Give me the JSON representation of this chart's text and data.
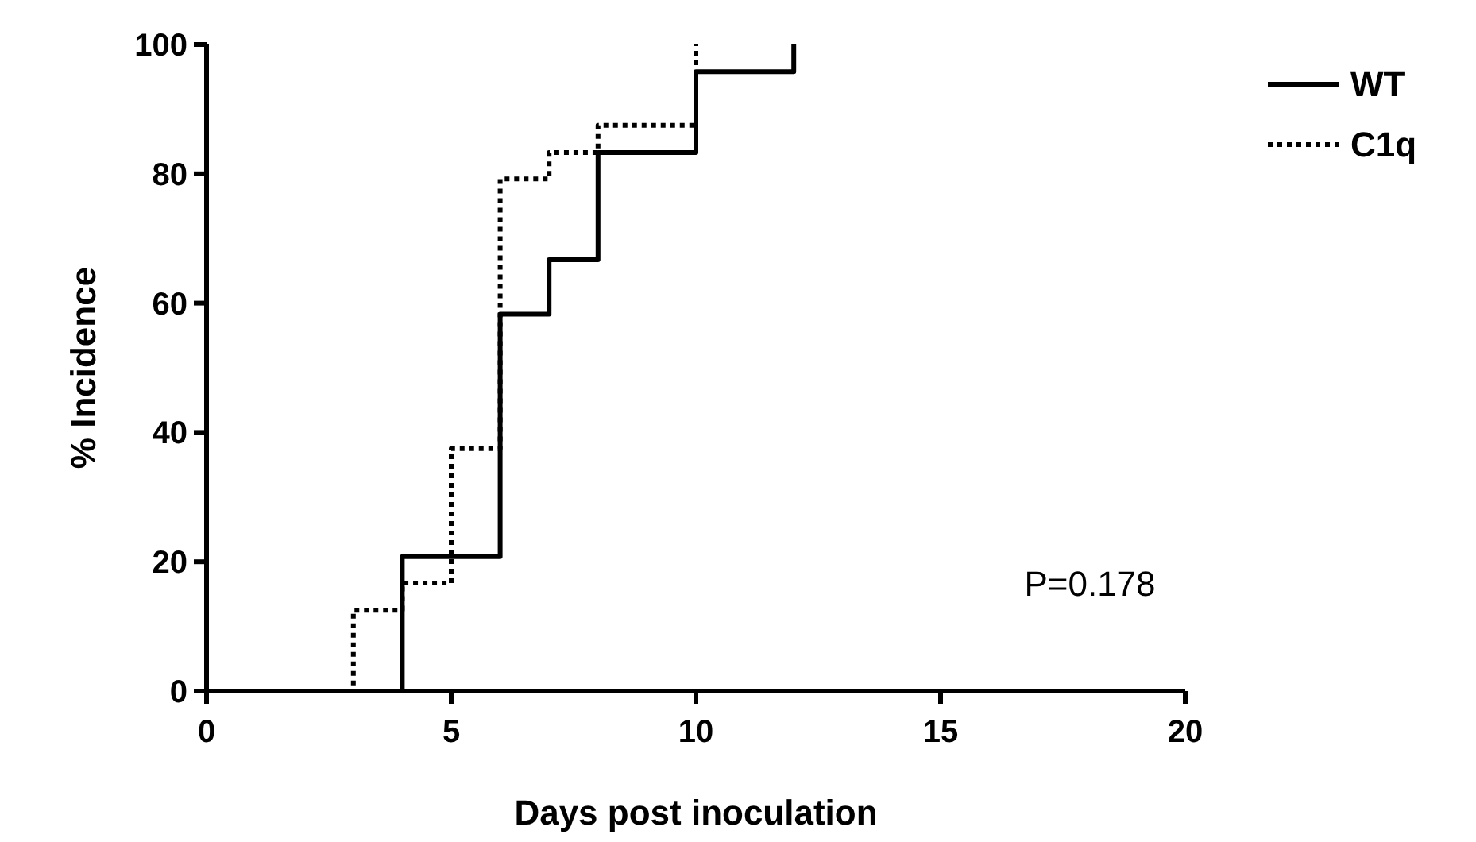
{
  "chart_data": {
    "type": "step",
    "xlabel": "Days post inoculation",
    "ylabel": "% Incidence",
    "xlim": [
      0,
      20
    ],
    "xticks": [
      0,
      5,
      10,
      15,
      20
    ],
    "ylim": [
      0,
      100
    ],
    "yticks": [
      0,
      20,
      40,
      60,
      80,
      100
    ],
    "grid": false,
    "legend": "top right",
    "marker": "none",
    "annotations": [
      "P=0.178"
    ],
    "series": [
      {
        "name": "WT",
        "color": "#000000",
        "line_style": "solid",
        "x": [
          0,
          4,
          6,
          7,
          8,
          10,
          12
        ],
        "values": [
          0,
          20.8,
          58.3,
          66.7,
          83.3,
          95.8,
          100
        ]
      },
      {
        "name": "C1q",
        "color": "#000000",
        "line_style": "dotted",
        "x": [
          0,
          3,
          4,
          5,
          6,
          7,
          8,
          10
        ],
        "values": [
          0,
          12.5,
          16.7,
          37.5,
          79.2,
          83.3,
          87.5,
          100
        ]
      }
    ]
  }
}
